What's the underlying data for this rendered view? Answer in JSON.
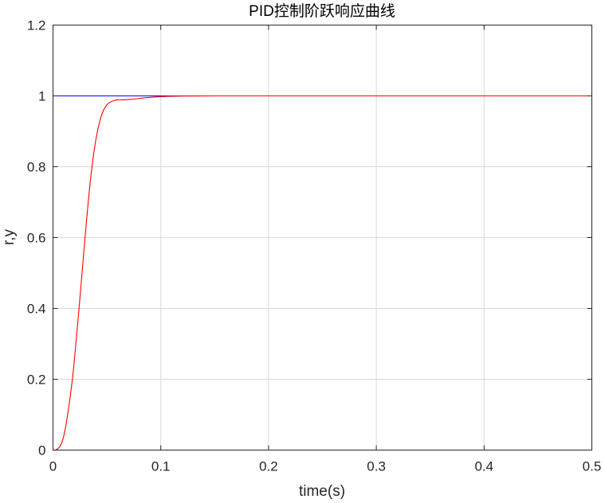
{
  "chart_data": {
    "type": "line",
    "title": "PID控制阶跃响应曲线",
    "xlabel": "time(s)",
    "ylabel": "r,y",
    "xlim": [
      0,
      0.5
    ],
    "ylim": [
      0,
      1.2
    ],
    "xticks": [
      0,
      0.1,
      0.2,
      0.3,
      0.4,
      0.5
    ],
    "xtick_labels": [
      "0",
      "0.1",
      "0.2",
      "0.3",
      "0.4",
      "0.5"
    ],
    "yticks": [
      0,
      0.2,
      0.4,
      0.6,
      0.8,
      1,
      1.2
    ],
    "ytick_labels": [
      "0",
      "0.2",
      "0.4",
      "0.6",
      "0.8",
      "1",
      "1.2"
    ],
    "grid": true,
    "legend": "none",
    "series": [
      {
        "color": "#0000ff",
        "x": [
          0,
          0.5
        ],
        "y": [
          1,
          1
        ]
      },
      {
        "color": "#ff0000",
        "x": [
          0,
          0.002,
          0.005,
          0.008,
          0.01,
          0.012,
          0.015,
          0.018,
          0.02,
          0.025,
          0.03,
          0.035,
          0.04,
          0.045,
          0.05,
          0.055,
          0.058,
          0.06,
          0.063,
          0.066,
          0.07,
          0.075,
          0.08,
          0.09,
          0.1,
          0.11,
          0.12,
          0.15,
          0.2,
          0.3,
          0.4,
          0.5
        ],
        "y": [
          0,
          0.0,
          0.005,
          0.02,
          0.04,
          0.07,
          0.13,
          0.2,
          0.26,
          0.43,
          0.61,
          0.77,
          0.88,
          0.945,
          0.975,
          0.985,
          0.988,
          0.989,
          0.989,
          0.989,
          0.99,
          0.991,
          0.993,
          0.996,
          0.998,
          0.999,
          0.9995,
          1.0,
          1.0,
          1.0,
          1.0,
          1.0
        ]
      }
    ]
  }
}
